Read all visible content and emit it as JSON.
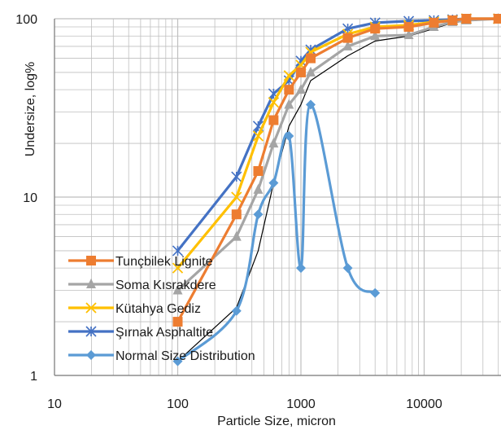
{
  "chart_data": {
    "type": "line",
    "xscale": "log",
    "yscale": "log",
    "xlim": [
      10,
      40000
    ],
    "ylim": [
      1,
      100
    ],
    "xlabel": "Particle Size, micron",
    "ylabel": "Undersize, log%",
    "x_ticks": [
      "10",
      "100",
      "1000",
      "10000"
    ],
    "y_ticks": [
      "1",
      "10",
      "100"
    ],
    "grid": true,
    "legend_position": "bottom-left",
    "series": [
      {
        "name": "Tunçbilek Lignite",
        "color": "#ED7D31",
        "marker": "square",
        "x": [
          100,
          300,
          450,
          600,
          800,
          1000,
          1200,
          2400,
          4000,
          7500,
          12000,
          17000,
          22000,
          40000
        ],
        "y": [
          2,
          8,
          14,
          27,
          40,
          50,
          60,
          78,
          88,
          90,
          95,
          98,
          100,
          100
        ]
      },
      {
        "name": "Soma Kısrakdere",
        "color": "#A5A5A5",
        "marker": "triangle",
        "x": [
          100,
          300,
          450,
          600,
          800,
          1000,
          1200,
          2400,
          4000,
          7500,
          12000,
          17000,
          22000,
          40000
        ],
        "y": [
          3,
          6,
          11,
          20,
          33,
          40,
          50,
          70,
          80,
          81,
          90,
          96,
          98,
          100
        ]
      },
      {
        "name": "Kütahya Gediz",
        "color": "#FFC000",
        "marker": "x",
        "x": [
          100,
          300,
          450,
          600,
          800,
          1000,
          1200,
          2400,
          4000,
          7500,
          12000,
          17000,
          22000,
          40000
        ],
        "y": [
          4,
          10,
          22,
          34,
          48,
          55,
          65,
          82,
          90,
          92,
          96,
          98,
          100,
          100
        ]
      },
      {
        "name": "Şırnak Asphaltite",
        "color": "#4472C4",
        "marker": "star",
        "x": [
          100,
          300,
          450,
          600,
          800,
          1000,
          1200,
          2400,
          4000,
          7500,
          12000,
          17000,
          22000,
          40000
        ],
        "y": [
          5,
          13,
          25,
          38,
          45,
          58,
          67,
          88,
          95,
          97,
          98,
          99,
          100,
          100
        ]
      },
      {
        "name": "Normal Size Distribution",
        "color": "#5B9BD5",
        "marker": "diamond",
        "smooth": true,
        "x": [
          100,
          300,
          450,
          600,
          800,
          1000,
          1200,
          2400,
          4000
        ],
        "y": [
          1.2,
          2.3,
          8,
          12,
          22,
          4,
          33,
          4,
          2.9
        ]
      },
      {
        "name": "",
        "color": "#000000",
        "marker": "none",
        "thin": true,
        "x": [
          100,
          300,
          450,
          600,
          800,
          1000,
          1200,
          2400,
          4000,
          7500,
          12000,
          17000,
          22000,
          40000
        ],
        "y": [
          1.2,
          2.4,
          5,
          12,
          25,
          33,
          45,
          62,
          75,
          80,
          88,
          95,
          97,
          100
        ]
      }
    ]
  }
}
